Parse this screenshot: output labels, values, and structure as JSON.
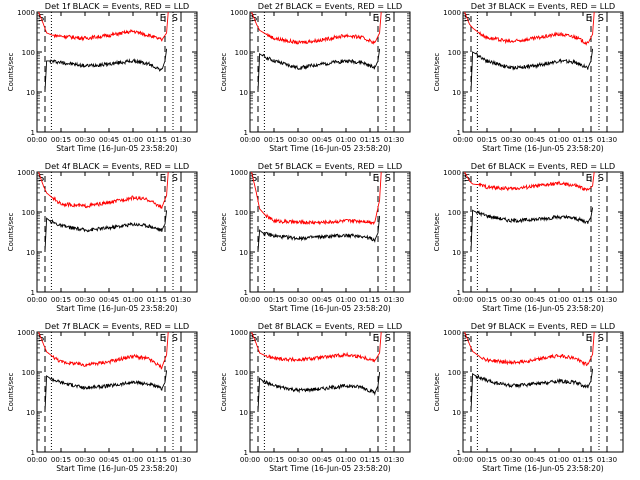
{
  "chart_data": [
    {
      "type": "line",
      "yscale": "log",
      "ylim": [
        1,
        1000
      ],
      "title": "Det 1f BLACK = Events, RED = LLD",
      "xlabel": "Start Time (16-Jun-05 23:58:20)",
      "ylabel": "Counts/sec",
      "x_ticks": [
        "00:00",
        "00:15",
        "00:30",
        "00:45",
        "01:00",
        "01:15",
        "01:30"
      ],
      "y_ticks": [
        "1",
        "10",
        "100",
        "1000"
      ],
      "markers": [
        {
          "label": "S",
          "time": "00:00"
        },
        {
          "label": "E",
          "time": "01:18"
        },
        {
          "label": "S",
          "time": "01:22"
        }
      ],
      "series": [
        {
          "name": "BLACK = Events",
          "color": "#000000",
          "x": [
            "00:05",
            "00:06",
            "00:08",
            "00:15",
            "00:30",
            "00:45",
            "01:00",
            "01:10",
            "01:18",
            "01:20",
            "01:21"
          ],
          "y": [
            10,
            60,
            60,
            55,
            45,
            50,
            60,
            50,
            35,
            60,
            120
          ]
        },
        {
          "name": "RED = LLD",
          "color": "#ff0000",
          "x": [
            "00:01",
            "00:04",
            "00:06",
            "00:10",
            "00:15",
            "00:30",
            "00:45",
            "01:00",
            "01:10",
            "01:18",
            "01:21",
            "01:22"
          ],
          "y": [
            1000,
            500,
            300,
            260,
            250,
            220,
            260,
            330,
            260,
            200,
            300,
            1000
          ]
        }
      ]
    },
    {
      "type": "line",
      "yscale": "log",
      "ylim": [
        1,
        1000
      ],
      "title": "Det 2f BLACK = Events, RED = LLD",
      "xlabel": "Start Time (16-Jun-05 23:58:20)",
      "ylabel": "Counts/sec",
      "x_ticks": [
        "00:00",
        "00:15",
        "00:30",
        "00:45",
        "01:00",
        "01:15",
        "01:30"
      ],
      "y_ticks": [
        "1",
        "10",
        "100",
        "1000"
      ],
      "markers": [
        {
          "label": "S",
          "time": "00:00"
        },
        {
          "label": "E",
          "time": "01:18"
        },
        {
          "label": "S",
          "time": "01:22"
        }
      ],
      "series": [
        {
          "name": "BLACK = Events",
          "color": "#000000",
          "x": [
            "00:05",
            "00:06",
            "00:08",
            "00:15",
            "00:30",
            "00:45",
            "01:00",
            "01:10",
            "01:18",
            "01:20",
            "01:21"
          ],
          "y": [
            10,
            90,
            80,
            60,
            40,
            50,
            60,
            55,
            40,
            60,
            120
          ]
        },
        {
          "name": "RED = LLD",
          "color": "#ff0000",
          "x": [
            "00:01",
            "00:04",
            "00:06",
            "00:10",
            "00:15",
            "00:30",
            "00:45",
            "01:00",
            "01:10",
            "01:18",
            "01:21",
            "01:22"
          ],
          "y": [
            1000,
            500,
            350,
            280,
            220,
            170,
            200,
            260,
            230,
            170,
            300,
            1000
          ]
        }
      ]
    },
    {
      "type": "line",
      "yscale": "log",
      "ylim": [
        1,
        1000
      ],
      "title": "Det 3f BLACK = Events, RED = LLD",
      "xlabel": "Start Time (16-Jun-05 23:58:20)",
      "ylabel": "Counts/sec",
      "x_ticks": [
        "00:00",
        "00:15",
        "00:30",
        "00:45",
        "01:00",
        "01:15",
        "01:30"
      ],
      "y_ticks": [
        "1",
        "10",
        "100",
        "1000"
      ],
      "markers": [
        {
          "label": "S",
          "time": "00:00"
        },
        {
          "label": "E",
          "time": "01:18"
        },
        {
          "label": "S",
          "time": "01:22"
        }
      ],
      "series": [
        {
          "name": "BLACK = Events",
          "color": "#000000",
          "x": [
            "00:05",
            "00:06",
            "00:08",
            "00:15",
            "00:30",
            "00:45",
            "01:00",
            "01:10",
            "01:18",
            "01:20",
            "01:21"
          ],
          "y": [
            10,
            100,
            90,
            60,
            40,
            45,
            60,
            55,
            40,
            60,
            120
          ]
        },
        {
          "name": "RED = LLD",
          "color": "#ff0000",
          "x": [
            "00:01",
            "00:04",
            "00:06",
            "00:10",
            "00:15",
            "00:30",
            "00:45",
            "01:00",
            "01:10",
            "01:18",
            "01:21",
            "01:22"
          ],
          "y": [
            1000,
            500,
            400,
            300,
            230,
            180,
            220,
            280,
            240,
            160,
            280,
            1000
          ]
        }
      ]
    },
    {
      "type": "line",
      "yscale": "log",
      "ylim": [
        1,
        1000
      ],
      "title": "Det 4f BLACK = Events, RED = LLD",
      "xlabel": "Start Time (16-Jun-05 23:58:20)",
      "ylabel": "Counts/sec",
      "x_ticks": [
        "00:00",
        "00:15",
        "00:30",
        "00:45",
        "01:00",
        "01:15",
        "01:30"
      ],
      "y_ticks": [
        "1",
        "10",
        "100",
        "1000"
      ],
      "markers": [
        {
          "label": "S",
          "time": "00:00"
        },
        {
          "label": "E",
          "time": "01:18"
        },
        {
          "label": "S",
          "time": "01:22"
        }
      ],
      "series": [
        {
          "name": "BLACK = Events",
          "color": "#000000",
          "x": [
            "00:05",
            "00:06",
            "00:08",
            "00:15",
            "00:30",
            "00:45",
            "01:00",
            "01:10",
            "01:18",
            "01:20",
            "01:21"
          ],
          "y": [
            10,
            70,
            60,
            45,
            35,
            40,
            50,
            45,
            35,
            50,
            110
          ]
        },
        {
          "name": "RED = LLD",
          "color": "#ff0000",
          "x": [
            "00:01",
            "00:04",
            "00:06",
            "00:10",
            "00:15",
            "00:30",
            "00:45",
            "01:00",
            "01:10",
            "01:18",
            "01:21",
            "01:22"
          ],
          "y": [
            1000,
            450,
            300,
            220,
            160,
            140,
            170,
            230,
            200,
            130,
            260,
            1000
          ]
        }
      ]
    },
    {
      "type": "line",
      "yscale": "log",
      "ylim": [
        1,
        1000
      ],
      "title": "Det 5f BLACK = Events, RED = LLD",
      "xlabel": "Start Time (16-Jun-05 23:58:20)",
      "ylabel": "Counts/sec",
      "x_ticks": [
        "00:00",
        "00:15",
        "00:30",
        "00:45",
        "01:00",
        "01:15",
        "01:30"
      ],
      "y_ticks": [
        "1",
        "10",
        "100",
        "1000"
      ],
      "markers": [
        {
          "label": "S",
          "time": "00:00"
        },
        {
          "label": "E",
          "time": "01:18"
        },
        {
          "label": "S",
          "time": "01:22"
        }
      ],
      "series": [
        {
          "name": "BLACK = Events",
          "color": "#000000",
          "x": [
            "00:05",
            "00:06",
            "00:08",
            "00:15",
            "00:30",
            "00:45",
            "01:00",
            "01:10",
            "01:18",
            "01:20",
            "01:21"
          ],
          "y": [
            10,
            35,
            30,
            25,
            22,
            24,
            26,
            25,
            20,
            30,
            80
          ]
        },
        {
          "name": "RED = LLD",
          "color": "#ff0000",
          "x": [
            "00:01",
            "00:04",
            "00:06",
            "00:10",
            "00:15",
            "00:30",
            "00:45",
            "01:00",
            "01:10",
            "01:18",
            "01:21",
            "01:22"
          ],
          "y": [
            1000,
            300,
            120,
            80,
            60,
            55,
            55,
            60,
            60,
            55,
            200,
            1000
          ]
        }
      ]
    },
    {
      "type": "line",
      "yscale": "log",
      "ylim": [
        1,
        1000
      ],
      "title": "Det 6f BLACK = Events, RED = LLD",
      "xlabel": "Start Time (16-Jun-05 23:58:20)",
      "ylabel": "Counts/sec",
      "x_ticks": [
        "00:00",
        "00:15",
        "00:30",
        "00:45",
        "01:00",
        "01:15",
        "01:30"
      ],
      "y_ticks": [
        "1",
        "10",
        "100",
        "1000"
      ],
      "markers": [
        {
          "label": "S",
          "time": "00:00"
        },
        {
          "label": "E",
          "time": "01:18"
        },
        {
          "label": "S",
          "time": "01:22"
        }
      ],
      "series": [
        {
          "name": "BLACK = Events",
          "color": "#000000",
          "x": [
            "00:05",
            "00:06",
            "00:08",
            "00:15",
            "00:30",
            "00:45",
            "01:00",
            "01:10",
            "01:18",
            "01:20",
            "01:21"
          ],
          "y": [
            10,
            110,
            100,
            80,
            60,
            65,
            75,
            70,
            55,
            75,
            130
          ]
        },
        {
          "name": "RED = LLD",
          "color": "#ff0000",
          "x": [
            "00:01",
            "00:04",
            "00:06",
            "00:10",
            "00:15",
            "00:30",
            "00:45",
            "01:00",
            "01:10",
            "01:18",
            "01:21",
            "01:22"
          ],
          "y": [
            1000,
            600,
            500,
            480,
            420,
            380,
            440,
            520,
            460,
            350,
            450,
            1000
          ]
        }
      ]
    },
    {
      "type": "line",
      "yscale": "log",
      "ylim": [
        1,
        1000
      ],
      "title": "Det 7f BLACK = Events, RED = LLD",
      "xlabel": "Start Time (16-Jun-05 23:58:20)",
      "ylabel": "Counts/sec",
      "x_ticks": [
        "00:00",
        "00:15",
        "00:30",
        "00:45",
        "01:00",
        "01:15",
        "01:30"
      ],
      "y_ticks": [
        "1",
        "10",
        "100",
        "1000"
      ],
      "markers": [
        {
          "label": "S",
          "time": "00:00"
        },
        {
          "label": "E",
          "time": "01:18"
        },
        {
          "label": "S",
          "time": "01:22"
        }
      ],
      "series": [
        {
          "name": "BLACK = Events",
          "color": "#000000",
          "x": [
            "00:05",
            "00:06",
            "00:08",
            "00:15",
            "00:30",
            "00:45",
            "01:00",
            "01:10",
            "01:18",
            "01:20",
            "01:21"
          ],
          "y": [
            10,
            80,
            70,
            55,
            40,
            45,
            55,
            50,
            38,
            55,
            110
          ]
        },
        {
          "name": "RED = LLD",
          "color": "#ff0000",
          "x": [
            "00:01",
            "00:04",
            "00:06",
            "00:10",
            "00:15",
            "00:30",
            "00:45",
            "01:00",
            "01:10",
            "01:18",
            "01:21",
            "01:22"
          ],
          "y": [
            1000,
            500,
            320,
            240,
            180,
            150,
            180,
            250,
            210,
            130,
            270,
            1000
          ]
        }
      ]
    },
    {
      "type": "line",
      "yscale": "log",
      "ylim": [
        1,
        1000
      ],
      "title": "Det 8f BLACK = Events, RED = LLD",
      "xlabel": "Start Time (16-Jun-05 23:58:20)",
      "ylabel": "Counts/sec",
      "x_ticks": [
        "00:00",
        "00:15",
        "00:30",
        "00:45",
        "01:00",
        "01:15",
        "01:30"
      ],
      "y_ticks": [
        "1",
        "10",
        "100",
        "1000"
      ],
      "markers": [
        {
          "label": "S",
          "time": "00:00"
        },
        {
          "label": "E",
          "time": "01:18"
        },
        {
          "label": "S",
          "time": "01:22"
        }
      ],
      "series": [
        {
          "name": "BLACK = Events",
          "color": "#000000",
          "x": [
            "00:05",
            "00:06",
            "00:08",
            "00:15",
            "00:30",
            "00:45",
            "01:00",
            "01:10",
            "01:18",
            "01:20",
            "01:21"
          ],
          "y": [
            10,
            70,
            60,
            45,
            35,
            38,
            45,
            42,
            30,
            45,
            100
          ]
        },
        {
          "name": "RED = LLD",
          "color": "#ff0000",
          "x": [
            "00:01",
            "00:04",
            "00:06",
            "00:10",
            "00:15",
            "00:30",
            "00:45",
            "01:00",
            "01:10",
            "01:18",
            "01:21",
            "01:22"
          ],
          "y": [
            1000,
            500,
            300,
            250,
            220,
            200,
            230,
            270,
            240,
            190,
            300,
            1000
          ]
        }
      ]
    },
    {
      "type": "line",
      "yscale": "log",
      "ylim": [
        1,
        1000
      ],
      "title": "Det 9f BLACK = Events, RED = LLD",
      "xlabel": "Start Time (16-Jun-05 23:58:20)",
      "ylabel": "Counts/sec",
      "x_ticks": [
        "00:00",
        "00:15",
        "00:30",
        "00:45",
        "01:00",
        "01:15",
        "01:30"
      ],
      "y_ticks": [
        "1",
        "10",
        "100",
        "1000"
      ],
      "markers": [
        {
          "label": "S",
          "time": "00:00"
        },
        {
          "label": "E",
          "time": "01:18"
        },
        {
          "label": "S",
          "time": "01:22"
        }
      ],
      "series": [
        {
          "name": "BLACK = Events",
          "color": "#000000",
          "x": [
            "00:05",
            "00:06",
            "00:08",
            "00:15",
            "00:30",
            "00:45",
            "01:00",
            "01:10",
            "01:18",
            "01:20",
            "01:21"
          ],
          "y": [
            10,
            90,
            80,
            60,
            45,
            50,
            60,
            55,
            42,
            60,
            120
          ]
        },
        {
          "name": "RED = LLD",
          "color": "#ff0000",
          "x": [
            "00:01",
            "00:04",
            "00:06",
            "00:10",
            "00:15",
            "00:30",
            "00:45",
            "01:00",
            "01:10",
            "01:18",
            "01:21",
            "01:22"
          ],
          "y": [
            1000,
            500,
            330,
            250,
            200,
            170,
            200,
            260,
            220,
            150,
            280,
            1000
          ]
        }
      ]
    }
  ]
}
